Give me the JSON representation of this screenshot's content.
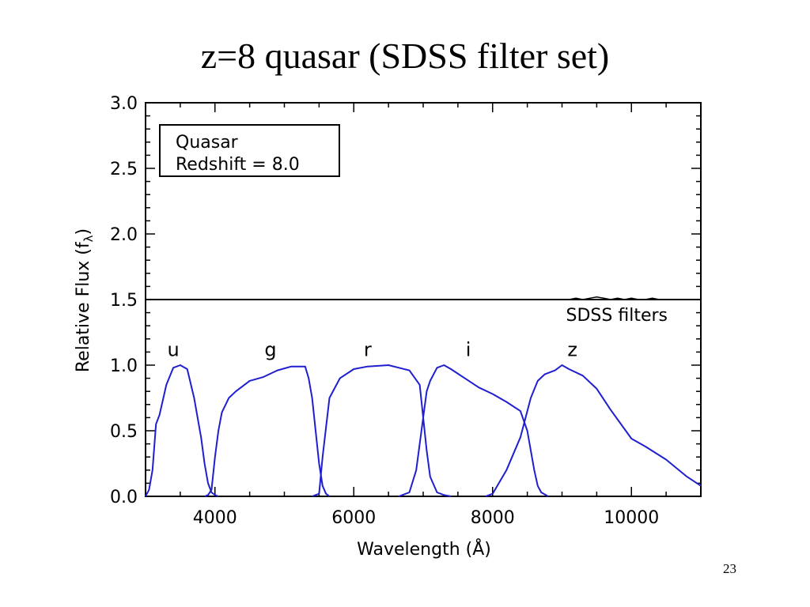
{
  "slide": {
    "title": "z=8 quasar (SDSS filter set)",
    "page_number": "23"
  },
  "chart_data": {
    "type": "line",
    "xlabel": "Wavelength (Å)",
    "ylabel": "Relative Flux (f",
    "ylabel_subscript": "λ",
    "ylabel_close": ")",
    "xlim": [
      3000,
      11000
    ],
    "ylim": [
      0,
      3.0
    ],
    "x_ticks": [
      4000,
      6000,
      8000,
      10000
    ],
    "x_tick_labels": [
      "4000",
      "6000",
      "8000",
      "10000"
    ],
    "y_ticks": [
      0.0,
      0.5,
      1.0,
      1.5,
      2.0,
      2.5,
      3.0
    ],
    "y_tick_labels": [
      "0.0",
      "0.5",
      "1.0",
      "1.5",
      "2.0",
      "2.5",
      "3.0"
    ],
    "grid": false,
    "legend_box": {
      "line1": "Quasar",
      "line2": "Redshift = 8.0",
      "placement": "top-left"
    },
    "filters_label": "SDSS filters",
    "divider_y": 1.5,
    "colors": {
      "filters": "#1f1fd0",
      "spectrum": "#000000",
      "axes": "#000000"
    },
    "quasar_spectrum": {
      "x": [
        8700,
        8900,
        9100,
        9200,
        9300,
        9400,
        9500,
        9600,
        9700,
        9800,
        9900,
        10000,
        10100,
        10200,
        10300,
        10400,
        10500,
        10600,
        10700,
        10800
      ],
      "y": [
        1.5,
        1.5,
        1.5,
        1.51,
        1.5,
        1.51,
        1.52,
        1.51,
        1.5,
        1.51,
        1.5,
        1.51,
        1.5,
        1.5,
        1.51,
        1.5,
        1.5,
        1.5,
        1.5,
        1.5
      ]
    },
    "series": [
      {
        "name": "u",
        "label_x": 3400,
        "label_y": 1.07,
        "x": [
          3000,
          3050,
          3100,
          3150,
          3200,
          3300,
          3400,
          3500,
          3600,
          3700,
          3750,
          3800,
          3850,
          3900,
          3950,
          4000,
          4050
        ],
        "y": [
          0.0,
          0.05,
          0.2,
          0.55,
          0.62,
          0.85,
          0.98,
          1.0,
          0.97,
          0.75,
          0.6,
          0.45,
          0.25,
          0.1,
          0.03,
          0.01,
          0.0
        ]
      },
      {
        "name": "g",
        "label_x": 4800,
        "label_y": 1.07,
        "x": [
          3850,
          3900,
          3950,
          4000,
          4050,
          4100,
          4200,
          4300,
          4500,
          4700,
          4900,
          5100,
          5300,
          5350,
          5400,
          5450,
          5500,
          5550,
          5600,
          5650
        ],
        "y": [
          0.0,
          0.01,
          0.05,
          0.3,
          0.5,
          0.64,
          0.75,
          0.8,
          0.88,
          0.91,
          0.96,
          0.99,
          0.99,
          0.9,
          0.75,
          0.5,
          0.25,
          0.08,
          0.02,
          0.0
        ]
      },
      {
        "name": "r",
        "label_x": 6200,
        "label_y": 1.07,
        "x": [
          5400,
          5500,
          5550,
          5650,
          5800,
          6000,
          6200,
          6500,
          6800,
          6950,
          7000,
          7050,
          7100,
          7200,
          7300,
          7400
        ],
        "y": [
          0.0,
          0.02,
          0.3,
          0.75,
          0.9,
          0.97,
          0.99,
          1.0,
          0.96,
          0.85,
          0.6,
          0.35,
          0.15,
          0.03,
          0.01,
          0.0
        ]
      },
      {
        "name": "i",
        "label_x": 7650,
        "label_y": 1.07,
        "x": [
          6650,
          6800,
          6900,
          7000,
          7050,
          7100,
          7200,
          7300,
          7400,
          7600,
          7800,
          8000,
          8200,
          8400,
          8500,
          8550,
          8600,
          8650,
          8700,
          8800
        ],
        "y": [
          0.0,
          0.03,
          0.2,
          0.6,
          0.8,
          0.88,
          0.98,
          1.0,
          0.97,
          0.9,
          0.83,
          0.78,
          0.72,
          0.65,
          0.5,
          0.35,
          0.2,
          0.08,
          0.03,
          0.0
        ]
      },
      {
        "name": "z",
        "label_x": 9150,
        "label_y": 1.07,
        "x": [
          7900,
          8000,
          8200,
          8400,
          8550,
          8650,
          8750,
          8900,
          9000,
          9100,
          9300,
          9500,
          9700,
          10000,
          10200,
          10500,
          10800,
          11000
        ],
        "y": [
          0.0,
          0.02,
          0.2,
          0.45,
          0.75,
          0.88,
          0.93,
          0.96,
          1.0,
          0.97,
          0.92,
          0.82,
          0.66,
          0.44,
          0.38,
          0.28,
          0.15,
          0.08
        ]
      }
    ]
  }
}
